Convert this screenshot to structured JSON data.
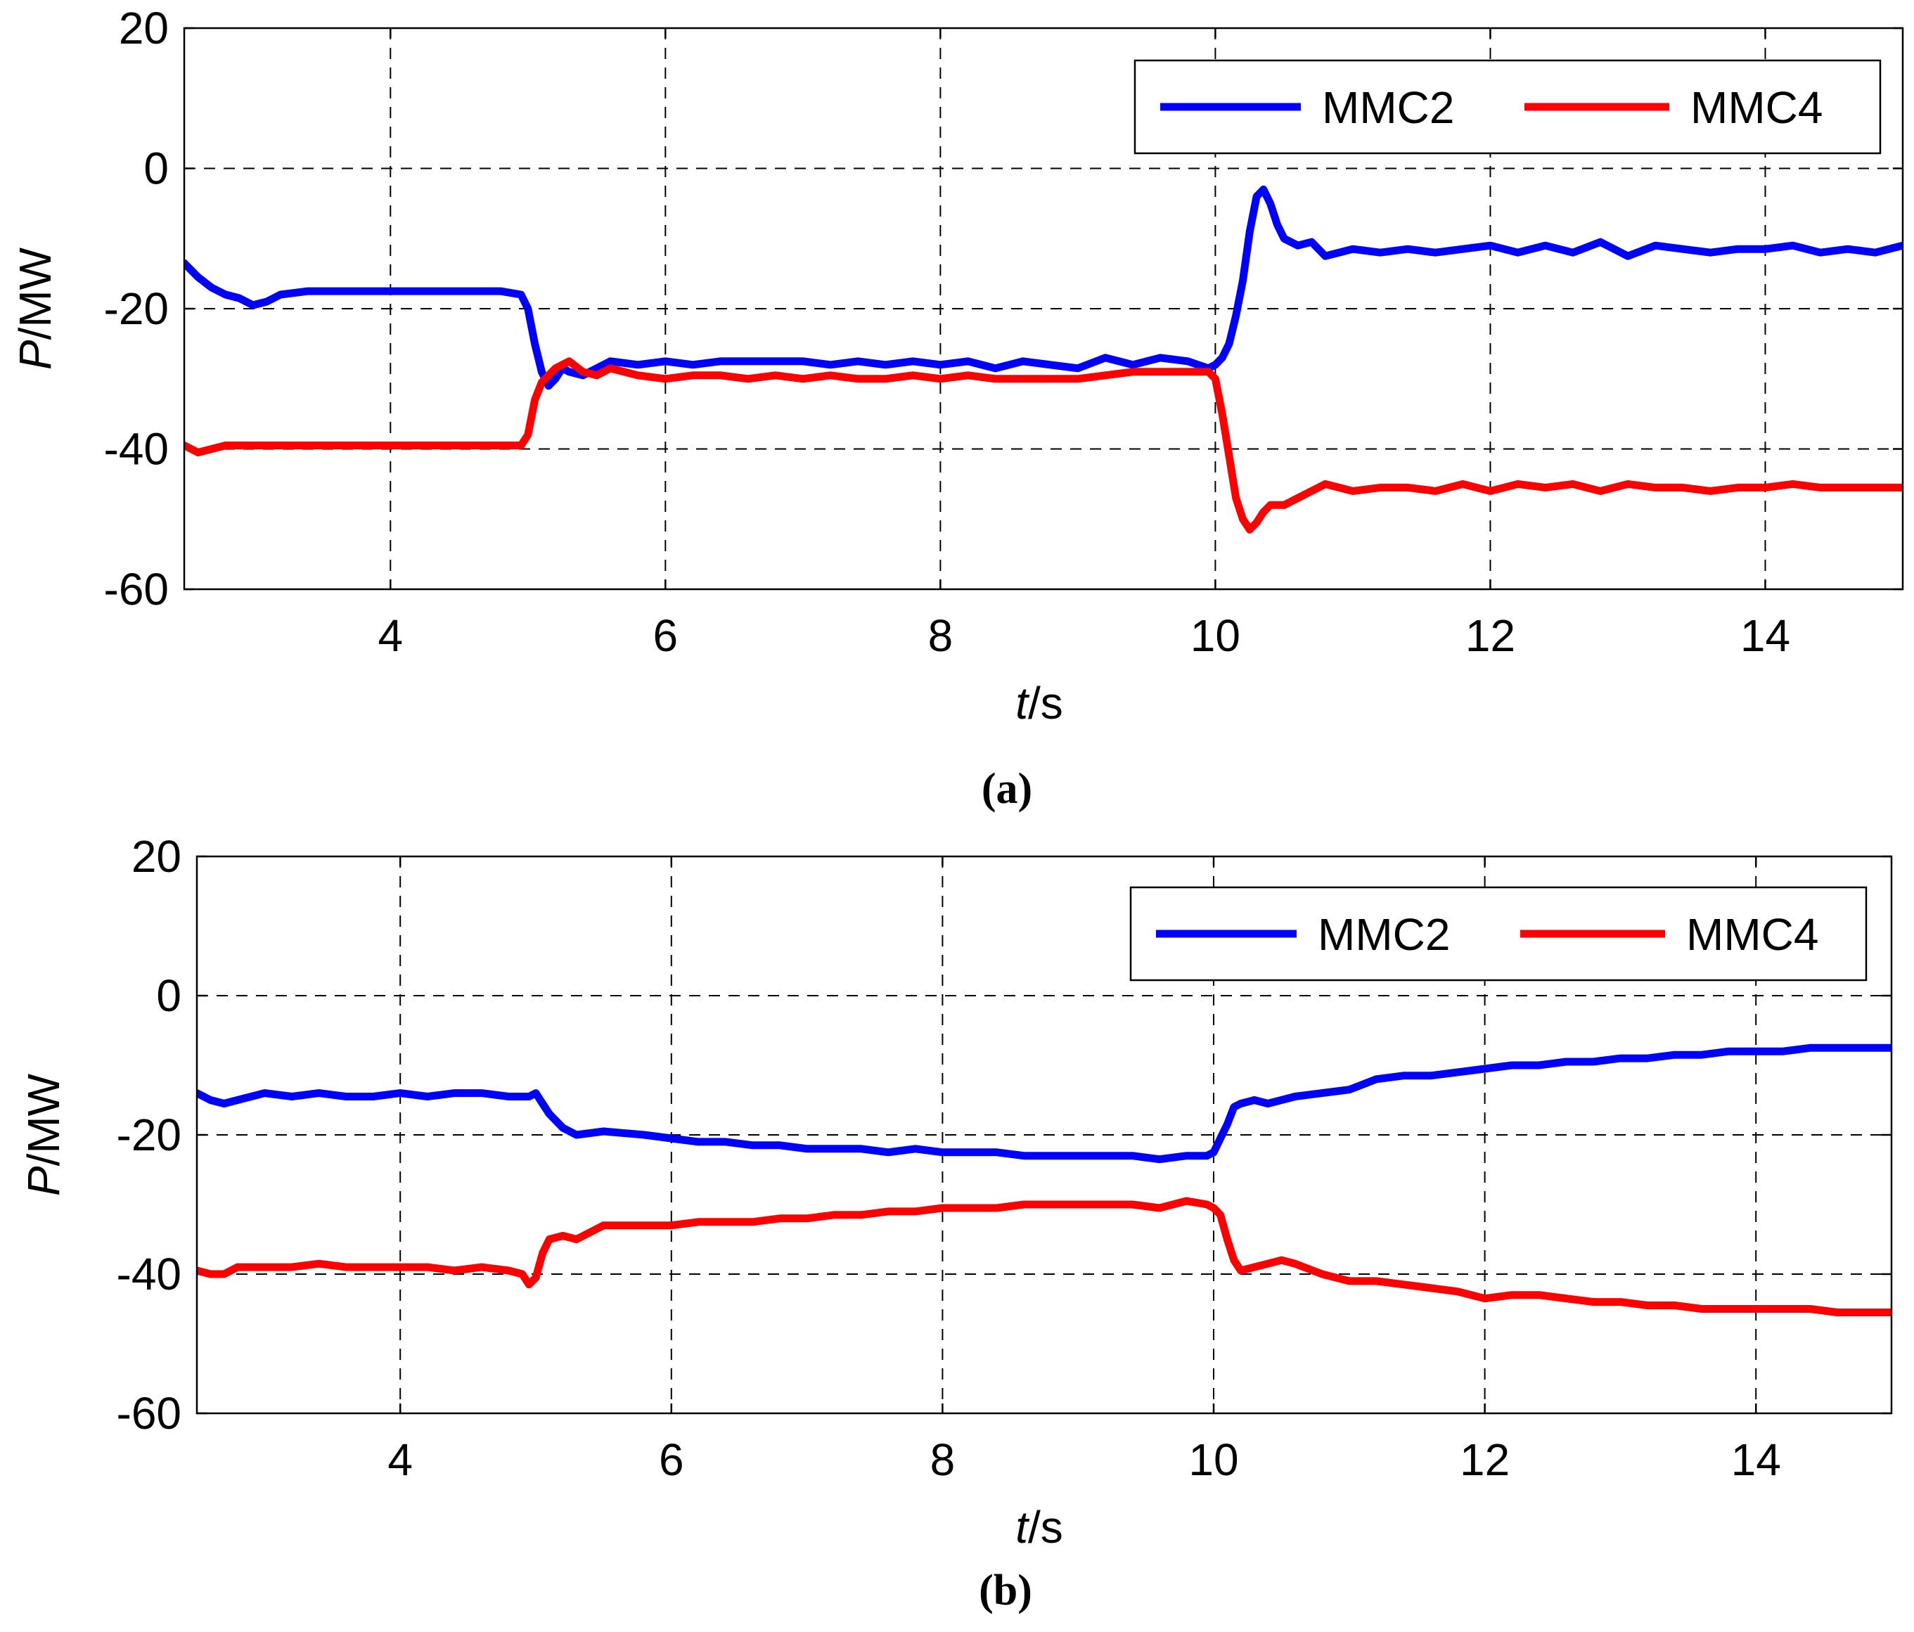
{
  "chart_data": [
    {
      "type": "line",
      "caption": "(a)",
      "xlabel_italic": "t",
      "xlabel_unit": "/s",
      "ylabel_italic": "P",
      "ylabel_unit": "/MW",
      "xlim": [
        2.5,
        15
      ],
      "ylim": [
        -60,
        20
      ],
      "xticks": [
        4,
        6,
        8,
        10,
        12,
        14
      ],
      "yticks": [
        20,
        0,
        -20,
        -40,
        -60
      ],
      "grid": true,
      "legend_position": "top-right",
      "series": [
        {
          "name": "MMC2",
          "color": "#0000ff",
          "x": [
            2.5,
            2.6,
            2.7,
            2.8,
            2.9,
            3.0,
            3.1,
            3.2,
            3.4,
            3.6,
            3.8,
            4.0,
            4.2,
            4.4,
            4.6,
            4.8,
            4.95,
            5.0,
            5.05,
            5.1,
            5.15,
            5.2,
            5.25,
            5.3,
            5.4,
            5.5,
            5.6,
            5.8,
            6.0,
            6.2,
            6.4,
            6.6,
            6.8,
            7.0,
            7.2,
            7.4,
            7.6,
            7.8,
            8.0,
            8.2,
            8.4,
            8.6,
            8.8,
            9.0,
            9.2,
            9.4,
            9.6,
            9.8,
            9.95,
            10.0,
            10.05,
            10.1,
            10.15,
            10.2,
            10.25,
            10.3,
            10.35,
            10.4,
            10.45,
            10.5,
            10.6,
            10.7,
            10.8,
            11.0,
            11.2,
            11.4,
            11.6,
            11.8,
            12.0,
            12.2,
            12.4,
            12.6,
            12.8,
            13.0,
            13.2,
            13.4,
            13.6,
            13.8,
            14.0,
            14.2,
            14.4,
            14.6,
            14.8,
            15.0
          ],
          "y": [
            -13.5,
            -15.5,
            -17,
            -18,
            -18.5,
            -19.5,
            -19,
            -18,
            -17.5,
            -17.5,
            -17.5,
            -17.5,
            -17.5,
            -17.5,
            -17.5,
            -17.5,
            -18,
            -20,
            -25,
            -29,
            -31,
            -30,
            -28.5,
            -29,
            -29.5,
            -28.5,
            -27.5,
            -28,
            -27.5,
            -28,
            -27.5,
            -27.5,
            -27.5,
            -27.5,
            -28,
            -27.5,
            -28,
            -27.5,
            -28,
            -27.5,
            -28.5,
            -27.5,
            -28,
            -28.5,
            -27,
            -28,
            -27,
            -27.5,
            -28.5,
            -28,
            -27,
            -25,
            -21,
            -16,
            -9,
            -4,
            -3,
            -5,
            -8,
            -10,
            -11,
            -10.5,
            -12.5,
            -11.5,
            -12,
            -11.5,
            -12,
            -11.5,
            -11,
            -12,
            -11,
            -12,
            -10.5,
            -12.5,
            -11,
            -11.5,
            -12,
            -11.5,
            -11.5,
            -11,
            -12,
            -11.5,
            -12,
            -11
          ]
        },
        {
          "name": "MMC4",
          "color": "#ff0000",
          "x": [
            2.5,
            2.6,
            2.7,
            2.8,
            3.0,
            3.2,
            3.4,
            3.6,
            3.8,
            4.0,
            4.2,
            4.4,
            4.6,
            4.8,
            4.95,
            5.0,
            5.05,
            5.1,
            5.15,
            5.2,
            5.3,
            5.4,
            5.5,
            5.6,
            5.8,
            6.0,
            6.2,
            6.4,
            6.6,
            6.8,
            7.0,
            7.2,
            7.4,
            7.6,
            7.8,
            8.0,
            8.2,
            8.4,
            8.6,
            8.8,
            9.0,
            9.2,
            9.4,
            9.6,
            9.8,
            9.95,
            10.0,
            10.05,
            10.1,
            10.15,
            10.2,
            10.25,
            10.3,
            10.35,
            10.4,
            10.5,
            10.6,
            10.8,
            11.0,
            11.2,
            11.4,
            11.6,
            11.8,
            12.0,
            12.2,
            12.4,
            12.6,
            12.8,
            13.0,
            13.2,
            13.4,
            13.6,
            13.8,
            14.0,
            14.2,
            14.4,
            14.6,
            14.8,
            15.0
          ],
          "y": [
            -39.5,
            -40.5,
            -40,
            -39.5,
            -39.5,
            -39.5,
            -39.5,
            -39.5,
            -39.5,
            -39.5,
            -39.5,
            -39.5,
            -39.5,
            -39.5,
            -39.5,
            -38,
            -33,
            -30.5,
            -29.5,
            -28.5,
            -27.5,
            -29,
            -29.5,
            -28.5,
            -29.5,
            -30,
            -29.5,
            -29.5,
            -30,
            -29.5,
            -30,
            -29.5,
            -30,
            -30,
            -29.5,
            -30,
            -29.5,
            -30,
            -30,
            -30,
            -30,
            -29.5,
            -29,
            -29,
            -29,
            -29,
            -30,
            -35,
            -41,
            -47,
            -50,
            -51.5,
            -50.5,
            -49,
            -48,
            -48,
            -47,
            -45,
            -46,
            -45.5,
            -45.5,
            -46,
            -45,
            -46,
            -45,
            -45.5,
            -45,
            -46,
            -45,
            -45.5,
            -45.5,
            -46,
            -45.5,
            -45.5,
            -45,
            -45.5,
            -45.5,
            -45.5,
            -45.5
          ]
        }
      ]
    },
    {
      "type": "line",
      "caption": "(b)",
      "xlabel_italic": "t",
      "xlabel_unit": "/s",
      "ylabel_italic": "P",
      "ylabel_unit": "/MW",
      "xlim": [
        2.5,
        15
      ],
      "ylim": [
        -60,
        20
      ],
      "xticks": [
        4,
        6,
        8,
        10,
        12,
        14
      ],
      "yticks": [
        20,
        0,
        -20,
        -40,
        -60
      ],
      "grid": true,
      "legend_position": "top-right",
      "series": [
        {
          "name": "MMC2",
          "color": "#0000ff",
          "x": [
            2.5,
            2.6,
            2.7,
            2.8,
            3.0,
            3.2,
            3.4,
            3.6,
            3.8,
            4.0,
            4.2,
            4.4,
            4.6,
            4.8,
            4.95,
            5.0,
            5.05,
            5.1,
            5.2,
            5.3,
            5.5,
            5.8,
            6.0,
            6.2,
            6.4,
            6.6,
            6.8,
            7.0,
            7.2,
            7.4,
            7.6,
            7.8,
            8.0,
            8.2,
            8.4,
            8.6,
            8.8,
            9.0,
            9.2,
            9.4,
            9.6,
            9.8,
            9.95,
            10.0,
            10.05,
            10.1,
            10.15,
            10.2,
            10.3,
            10.4,
            10.5,
            10.6,
            10.8,
            11.0,
            11.2,
            11.4,
            11.6,
            11.8,
            12.0,
            12.2,
            12.4,
            12.6,
            12.8,
            13.0,
            13.2,
            13.4,
            13.6,
            13.8,
            14.0,
            14.2,
            14.4,
            14.6,
            14.8,
            15.0
          ],
          "y": [
            -14,
            -15,
            -15.5,
            -15,
            -14,
            -14.5,
            -14,
            -14.5,
            -14.5,
            -14,
            -14.5,
            -14,
            -14,
            -14.5,
            -14.5,
            -14,
            -15.5,
            -17,
            -19,
            -20,
            -19.5,
            -20,
            -20.5,
            -21,
            -21,
            -21.5,
            -21.5,
            -22,
            -22,
            -22,
            -22.5,
            -22,
            -22.5,
            -22.5,
            -22.5,
            -23,
            -23,
            -23,
            -23,
            -23,
            -23.5,
            -23,
            -23,
            -22.5,
            -20.5,
            -18.5,
            -16,
            -15.5,
            -15,
            -15.5,
            -15,
            -14.5,
            -14,
            -13.5,
            -12,
            -11.5,
            -11.5,
            -11,
            -10.5,
            -10,
            -10,
            -9.5,
            -9.5,
            -9,
            -9,
            -8.5,
            -8.5,
            -8,
            -8,
            -8,
            -7.5,
            -7.5,
            -7.5,
            -7.5
          ]
        },
        {
          "name": "MMC4",
          "color": "#ff0000",
          "x": [
            2.5,
            2.6,
            2.7,
            2.8,
            3.0,
            3.2,
            3.4,
            3.6,
            3.8,
            4.0,
            4.2,
            4.4,
            4.6,
            4.8,
            4.9,
            4.95,
            5.0,
            5.05,
            5.1,
            5.2,
            5.3,
            5.4,
            5.5,
            5.6,
            5.8,
            6.0,
            6.2,
            6.4,
            6.6,
            6.8,
            7.0,
            7.2,
            7.4,
            7.6,
            7.8,
            8.0,
            8.2,
            8.4,
            8.6,
            8.8,
            9.0,
            9.2,
            9.4,
            9.6,
            9.8,
            9.95,
            10.0,
            10.05,
            10.1,
            10.15,
            10.2,
            10.3,
            10.4,
            10.5,
            10.6,
            10.8,
            11.0,
            11.2,
            11.4,
            11.6,
            11.8,
            12.0,
            12.2,
            12.4,
            12.6,
            12.8,
            13.0,
            13.2,
            13.4,
            13.6,
            13.8,
            14.0,
            14.2,
            14.4,
            14.6,
            14.8,
            15.0
          ],
          "y": [
            -39.5,
            -40,
            -40,
            -39,
            -39,
            -39,
            -38.5,
            -39,
            -39,
            -39,
            -39,
            -39.5,
            -39,
            -39.5,
            -40,
            -41.5,
            -40.5,
            -37,
            -35,
            -34.5,
            -35,
            -34,
            -33,
            -33,
            -33,
            -33,
            -32.5,
            -32.5,
            -32.5,
            -32,
            -32,
            -31.5,
            -31.5,
            -31,
            -31,
            -30.5,
            -30.5,
            -30.5,
            -30,
            -30,
            -30,
            -30,
            -30,
            -30.5,
            -29.5,
            -30,
            -30.5,
            -31.5,
            -35,
            -38,
            -39.5,
            -39,
            -38.5,
            -38,
            -38.5,
            -40,
            -41,
            -41,
            -41.5,
            -42,
            -42.5,
            -43.5,
            -43,
            -43,
            -43.5,
            -44,
            -44,
            -44.5,
            -44.5,
            -45,
            -45,
            -45,
            -45,
            -45,
            -45.5,
            -45.5,
            -45.5
          ]
        }
      ]
    }
  ]
}
